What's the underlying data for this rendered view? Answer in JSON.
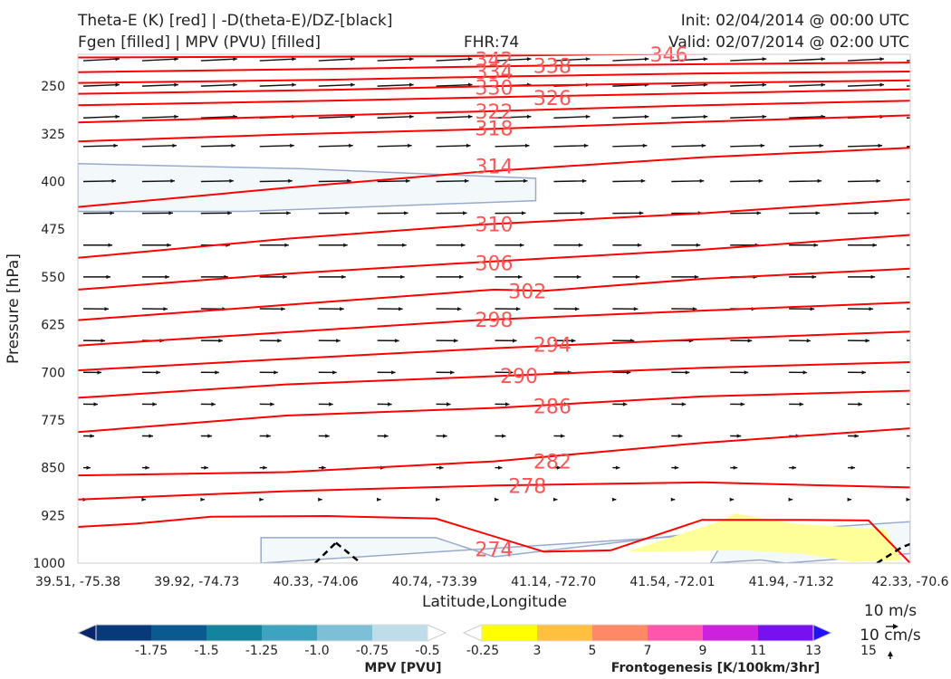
{
  "header": {
    "title_line1": "Theta-E (K) [red] | -D(theta-E)/DZ-[black]",
    "title_line2": "Fgen [filled] | MPV (PVU) [filled]",
    "fhr": "FHR:74",
    "init": "Init: 02/04/2014 @ 00:00 UTC",
    "valid": "Valid: 02/07/2014 @ 02:00 UTC"
  },
  "chart_data": {
    "type": "cross-section",
    "ylabel": "Pressure [hPa]",
    "xlabel": "Latitude,Longitude",
    "y_ticks": [
      250,
      325,
      400,
      475,
      550,
      625,
      700,
      775,
      850,
      925,
      1000
    ],
    "ylim": [
      1000,
      200
    ],
    "y_scale": "linear, inverted",
    "x_ticks": [
      "39.51, -75.38",
      "39.92, -74.73",
      "40.33, -74.06",
      "40.74, -73.39",
      "41.14, -72.70",
      "41.54, -72.01",
      "41.94, -71.32",
      "42.33, -70.6"
    ],
    "theta_e": {
      "color": "#ff0000",
      "label_color": "#ff5555",
      "contours": [
        {
          "level": 342,
          "x": [
            0,
            0.45,
            0.65,
            1
          ],
          "p": [
            205,
            203,
            200,
            198
          ]
        },
        {
          "level": 338,
          "x": [
            0,
            0.35,
            0.55,
            0.8,
            1
          ],
          "p": [
            228,
            222,
            218,
            215,
            213
          ]
        },
        {
          "level": 334,
          "x": [
            0,
            0.3,
            0.5,
            0.75,
            1
          ],
          "p": [
            245,
            240,
            235,
            230,
            227
          ]
        },
        {
          "level": 330,
          "x": [
            0,
            0.3,
            0.5,
            0.75,
            1
          ],
          "p": [
            262,
            256,
            250,
            245,
            241
          ]
        },
        {
          "level": 326,
          "x": [
            0,
            0.3,
            0.55,
            0.8,
            1
          ],
          "p": [
            280,
            273,
            266,
            260,
            255
          ]
        },
        {
          "level": 322,
          "x": [
            0,
            0.25,
            0.48,
            0.75,
            1
          ],
          "p": [
            307,
            298,
            290,
            280,
            273
          ]
        },
        {
          "level": 318,
          "x": [
            0,
            0.25,
            0.48,
            0.75,
            1
          ],
          "p": [
            337,
            326,
            318,
            306,
            296
          ]
        },
        {
          "level": 314,
          "x": [
            0,
            0.25,
            0.48,
            0.75,
            1
          ],
          "p": [
            440,
            410,
            385,
            362,
            347
          ]
        },
        {
          "level": 310,
          "x": [
            0,
            0.25,
            0.48,
            0.75,
            1
          ],
          "p": [
            520,
            490,
            468,
            450,
            428
          ]
        },
        {
          "level": 306,
          "x": [
            0,
            0.25,
            0.48,
            0.75,
            1
          ],
          "p": [
            570,
            545,
            527,
            507,
            484
          ]
        },
        {
          "level": 302,
          "x": [
            0,
            0.25,
            0.5,
            0.56,
            0.75,
            1
          ],
          "p": [
            618,
            594,
            570,
            572,
            553,
            537
          ]
        },
        {
          "level": 298,
          "x": [
            0,
            0.25,
            0.48,
            0.75,
            1
          ],
          "p": [
            658,
            637,
            618,
            603,
            590
          ]
        },
        {
          "level": 294,
          "x": [
            0,
            0.25,
            0.5,
            0.75,
            1
          ],
          "p": [
            697,
            679,
            662,
            648,
            636
          ]
        },
        {
          "level": 290,
          "x": [
            0,
            0.25,
            0.5,
            0.75,
            1
          ],
          "p": [
            740,
            719,
            706,
            693,
            684
          ]
        },
        {
          "level": 286,
          "x": [
            0,
            0.25,
            0.5,
            0.75,
            1
          ],
          "p": [
            794,
            768,
            756,
            738,
            729
          ]
        },
        {
          "level": 282,
          "x": [
            0,
            0.25,
            0.5,
            0.75,
            1
          ],
          "p": [
            862,
            857,
            840,
            811,
            788
          ]
        },
        {
          "level": 278,
          "x": [
            0,
            0.25,
            0.5,
            0.75,
            1
          ],
          "p": [
            900,
            887,
            878,
            873,
            881
          ]
        },
        {
          "level": 274,
          "x": [
            0,
            0.07,
            0.16,
            0.3,
            0.43,
            0.56,
            0.64,
            0.75,
            0.87,
            0.95,
            0.97,
            1
          ],
          "p": [
            943,
            938,
            927,
            926,
            930,
            982,
            980,
            932,
            932,
            933,
            960,
            1000
          ]
        }
      ],
      "labels": [
        {
          "text": "342",
          "x": 0.5,
          "p": 208
        },
        {
          "text": "338",
          "x": 0.57,
          "p": 218
        },
        {
          "text": "334",
          "x": 0.5,
          "p": 227
        },
        {
          "text": "330",
          "x": 0.5,
          "p": 252
        },
        {
          "text": "326",
          "x": 0.57,
          "p": 268
        },
        {
          "text": "322",
          "x": 0.5,
          "p": 290
        },
        {
          "text": "318",
          "x": 0.5,
          "p": 316
        },
        {
          "text": "314",
          "x": 0.5,
          "p": 376
        },
        {
          "text": "310",
          "x": 0.5,
          "p": 467
        },
        {
          "text": "306",
          "x": 0.5,
          "p": 528
        },
        {
          "text": "302",
          "x": 0.54,
          "p": 572
        },
        {
          "text": "298",
          "x": 0.5,
          "p": 617
        },
        {
          "text": "294",
          "x": 0.57,
          "p": 656
        },
        {
          "text": "290",
          "x": 0.53,
          "p": 705
        },
        {
          "text": "286",
          "x": 0.57,
          "p": 753
        },
        {
          "text": "282",
          "x": 0.57,
          "p": 840
        },
        {
          "text": "278",
          "x": 0.54,
          "p": 878
        },
        {
          "text": "274",
          "x": 0.5,
          "p": 978
        },
        {
          "text": "346",
          "x": 0.71,
          "p": 200
        }
      ]
    },
    "mpv_fill": {
      "color": "#f3f9fa",
      "edge": "#99aacc",
      "regions": [
        {
          "x": [
            0,
            0.27,
            0.55,
            0.55,
            0.2,
            0
          ],
          "p": [
            372,
            380,
            395,
            430,
            447,
            447
          ]
        },
        {
          "x": [
            0.22,
            0.43,
            0.5,
            0.73,
            0.78,
            0.76,
            0.82,
            0.85,
            1,
            1,
            0.22
          ],
          "p": [
            960,
            960,
            990,
            955,
            955,
            1000,
            995,
            1000,
            985,
            935,
            1000
          ]
        }
      ]
    },
    "fgen_fill": {
      "color": "#ffff99",
      "regions": [
        {
          "x": [
            0.66,
            0.77,
            0.79,
            0.86,
            0.97,
            0.99,
            0.93,
            0.87,
            0.8,
            0.66
          ],
          "p": [
            982,
            935,
            922,
            938,
            947,
            995,
            998,
            985,
            980,
            982
          ]
        }
      ]
    },
    "wind_vectors": {
      "color": "#111111",
      "columns": 15,
      "rows": [
        {
          "p": 210,
          "u": 1.0,
          "w": -0.05
        },
        {
          "p": 250,
          "u": 1.0,
          "w": -0.04
        },
        {
          "p": 300,
          "u": 1.0,
          "w": -0.04
        },
        {
          "p": 345,
          "u": 0.95,
          "w": -0.03
        },
        {
          "p": 400,
          "u": 0.9,
          "w": -0.02
        },
        {
          "p": 450,
          "u": 0.85,
          "w": -0.01
        },
        {
          "p": 500,
          "u": 0.8,
          "w": 0.0
        },
        {
          "p": 550,
          "u": 0.75,
          "w": 0.0
        },
        {
          "p": 600,
          "u": 0.7,
          "w": 0.01
        },
        {
          "p": 650,
          "u": 0.6,
          "w": 0.01
        },
        {
          "p": 700,
          "u": 0.5,
          "w": 0.01
        },
        {
          "p": 750,
          "u": 0.4,
          "w": 0.01
        },
        {
          "p": 800,
          "u": 0.3,
          "w": 0.01
        },
        {
          "p": 850,
          "u": 0.2,
          "w": 0.0
        },
        {
          "p": 900,
          "u": 0.1,
          "w": 0.0
        }
      ]
    },
    "dz_contour": {
      "color": "#000000",
      "style": "dashed",
      "segments": [
        {
          "x": [
            0.285,
            0.31
          ],
          "p": [
            1000,
            968
          ]
        },
        {
          "x": [
            0.31,
            0.34
          ],
          "p": [
            968,
            1000
          ]
        },
        {
          "x": [
            0.96,
            0.99,
            1.0
          ],
          "p": [
            1000,
            975,
            970
          ]
        }
      ]
    },
    "colorbars": {
      "mpv": {
        "label": "MPV [PVU]",
        "ticks": [
          "-1.75",
          "-1.5",
          "-1.25",
          "-1.0",
          "-0.75",
          "-0.5",
          "-0.25"
        ],
        "colors": [
          "#08246b",
          "#083a7a",
          "#0a5a8f",
          "#14849e",
          "#3ea3bf",
          "#7dbfd6",
          "#bfdde8",
          "#ffffff"
        ]
      },
      "fgen": {
        "label": "Frontogenesis [K/100km/3hr]",
        "ticks": [
          "3",
          "5",
          "7",
          "9",
          "11",
          "13",
          "15"
        ],
        "colors": [
          "#ffffff",
          "#ffff00",
          "#ffc040",
          "#ff8866",
          "#ff55aa",
          "#cc22dd",
          "#7711ee",
          "#2211ff"
        ]
      }
    },
    "reference": {
      "wind": "10 m/s",
      "vertical": "10 cm/s"
    }
  }
}
